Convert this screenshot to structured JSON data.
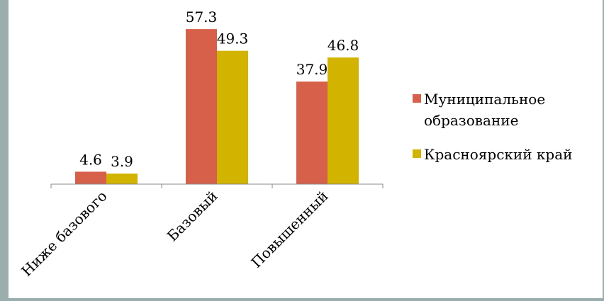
{
  "chart_data": {
    "type": "bar",
    "categories": [
      "Ниже базового",
      "Базовый",
      "Повышенный"
    ],
    "series": [
      {
        "name": "Муниципальное образование",
        "values": [
          4.6,
          57.3,
          37.9
        ]
      },
      {
        "name": "Красноярский край",
        "values": [
          3.9,
          49.3,
          46.8
        ]
      }
    ],
    "ylim": [
      0,
      70
    ],
    "grid": false,
    "legend": "right"
  },
  "colors": {
    "Муниципальное образование": "#d6604a",
    "Красноярский край": "#d2b400",
    "axis": "#888888",
    "background": "#ffffff",
    "border": "#9aaeae"
  }
}
